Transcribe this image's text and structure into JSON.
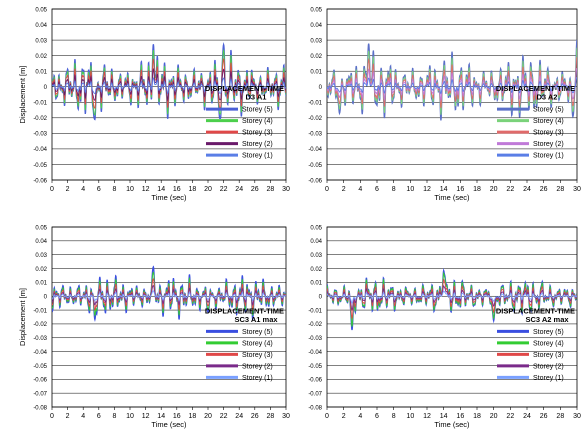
{
  "chart_data": [
    {
      "type": "line",
      "title": "DISPLACEMENT-TIME",
      "subtitle": "D3 A1",
      "xlabel": "Time (sec)",
      "ylabel": "Displacement [m]",
      "xlim": [
        0,
        30
      ],
      "ylim": [
        -0.06,
        0.05
      ],
      "xticks": [
        0,
        2,
        4,
        6,
        8,
        10,
        12,
        14,
        16,
        18,
        20,
        22,
        24,
        26,
        28,
        30
      ],
      "yticks": [
        -0.06,
        -0.05,
        -0.04,
        -0.03,
        -0.02,
        -0.01,
        0,
        0.01,
        0.02,
        0.03,
        0.04,
        0.05
      ],
      "grid": "horizontal",
      "legend_position": "right, below title",
      "series": [
        {
          "name": "Storey (5)",
          "color": "#4a5fd6",
          "peak": 0.029
        },
        {
          "name": "Storey (4)",
          "color": "#4ccf4c",
          "peak": 0.025
        },
        {
          "name": "Storey (3)",
          "color": "#e04848",
          "peak": 0.019
        },
        {
          "name": "Storey (2)",
          "color": "#6a1a6a",
          "peak": 0.012
        },
        {
          "name": "Storey (1)",
          "color": "#5a7ee6",
          "peak": 0.006
        }
      ],
      "notable_peaks": [
        [
          13.0,
          0.029
        ],
        [
          22.0,
          0.028
        ],
        [
          5.5,
          -0.022
        ],
        [
          21.5,
          -0.021
        ]
      ]
    },
    {
      "type": "line",
      "title": "DISPLACEMENT-TIME",
      "subtitle": "D3 A2",
      "xlabel": "Time (sec)",
      "ylabel": "",
      "xlim": [
        0,
        30
      ],
      "ylim": [
        -0.06,
        0.05
      ],
      "xticks": [
        0,
        2,
        4,
        6,
        8,
        10,
        12,
        14,
        16,
        18,
        20,
        22,
        24,
        26,
        28,
        30
      ],
      "yticks": [
        -0.06,
        -0.05,
        -0.04,
        -0.03,
        -0.02,
        -0.01,
        0,
        0.01,
        0.02,
        0.03,
        0.04,
        0.05
      ],
      "grid": "horizontal",
      "legend_position": "right, below title",
      "series": [
        {
          "name": "Storey (5)",
          "color": "#5a6fc8",
          "peak": 0.03
        },
        {
          "name": "Storey (4)",
          "color": "#7ad27a",
          "peak": 0.025
        },
        {
          "name": "Storey (3)",
          "color": "#e06a6a",
          "peak": 0.019
        },
        {
          "name": "Storey (2)",
          "color": "#c07ad8",
          "peak": 0.012
        },
        {
          "name": "Storey (1)",
          "color": "#5a7ee6",
          "peak": 0.006
        }
      ],
      "notable_peaks": [
        [
          30.0,
          0.032
        ],
        [
          5.0,
          0.029
        ],
        [
          29.5,
          -0.02
        ],
        [
          1.5,
          -0.018
        ]
      ]
    },
    {
      "type": "line",
      "title": "DISPLACEMENT-TIME",
      "subtitle": "SC3 A1 max",
      "xlabel": "Time (sec)",
      "ylabel": "Displacement [m]",
      "xlim": [
        0,
        30
      ],
      "ylim": [
        -0.08,
        0.05
      ],
      "xticks": [
        0,
        2,
        4,
        6,
        8,
        10,
        12,
        14,
        16,
        18,
        20,
        22,
        24,
        26,
        28,
        30
      ],
      "yticks": [
        -0.08,
        -0.07,
        -0.06,
        -0.05,
        -0.04,
        -0.03,
        -0.02,
        -0.01,
        0,
        0.01,
        0.02,
        0.03,
        0.04,
        0.05
      ],
      "grid": "horizontal",
      "legend_position": "right, below title",
      "series": [
        {
          "name": "Storey (5)",
          "color": "#3a4ee0",
          "peak": 0.022
        },
        {
          "name": "Storey (4)",
          "color": "#33cc33",
          "peak": 0.018
        },
        {
          "name": "Storey (3)",
          "color": "#e04848",
          "peak": 0.013
        },
        {
          "name": "Storey (2)",
          "color": "#7a2a8a",
          "peak": 0.008
        },
        {
          "name": "Storey (1)",
          "color": "#7aa0ff",
          "peak": 0.004
        }
      ],
      "notable_peaks": [
        [
          13.0,
          0.022
        ],
        [
          5.5,
          -0.018
        ],
        [
          20.0,
          -0.012
        ]
      ]
    },
    {
      "type": "line",
      "title": "DISPLACEMENT-TIME",
      "subtitle": "SC3 A2 max",
      "xlabel": "Time (sec)",
      "ylabel": "",
      "xlim": [
        0,
        30
      ],
      "ylim": [
        -0.08,
        0.05
      ],
      "xticks": [
        0,
        2,
        4,
        6,
        8,
        10,
        12,
        14,
        16,
        18,
        20,
        22,
        24,
        26,
        28,
        30
      ],
      "yticks": [
        -0.08,
        -0.07,
        -0.06,
        -0.05,
        -0.04,
        -0.03,
        -0.02,
        -0.01,
        0,
        0.01,
        0.02,
        0.03,
        0.04,
        0.05
      ],
      "grid": "horizontal",
      "legend_position": "right, below title",
      "series": [
        {
          "name": "Storey (5)",
          "color": "#3a4ee0",
          "peak": 0.02
        },
        {
          "name": "Storey (4)",
          "color": "#33cc33",
          "peak": 0.018
        },
        {
          "name": "Storey (3)",
          "color": "#e04848",
          "peak": 0.013
        },
        {
          "name": "Storey (2)",
          "color": "#7a2a8a",
          "peak": 0.008
        },
        {
          "name": "Storey (1)",
          "color": "#7aa0ff",
          "peak": 0.004
        }
      ],
      "notable_peaks": [
        [
          14.0,
          0.02
        ],
        [
          3.0,
          -0.026
        ],
        [
          20.0,
          -0.019
        ]
      ]
    }
  ]
}
